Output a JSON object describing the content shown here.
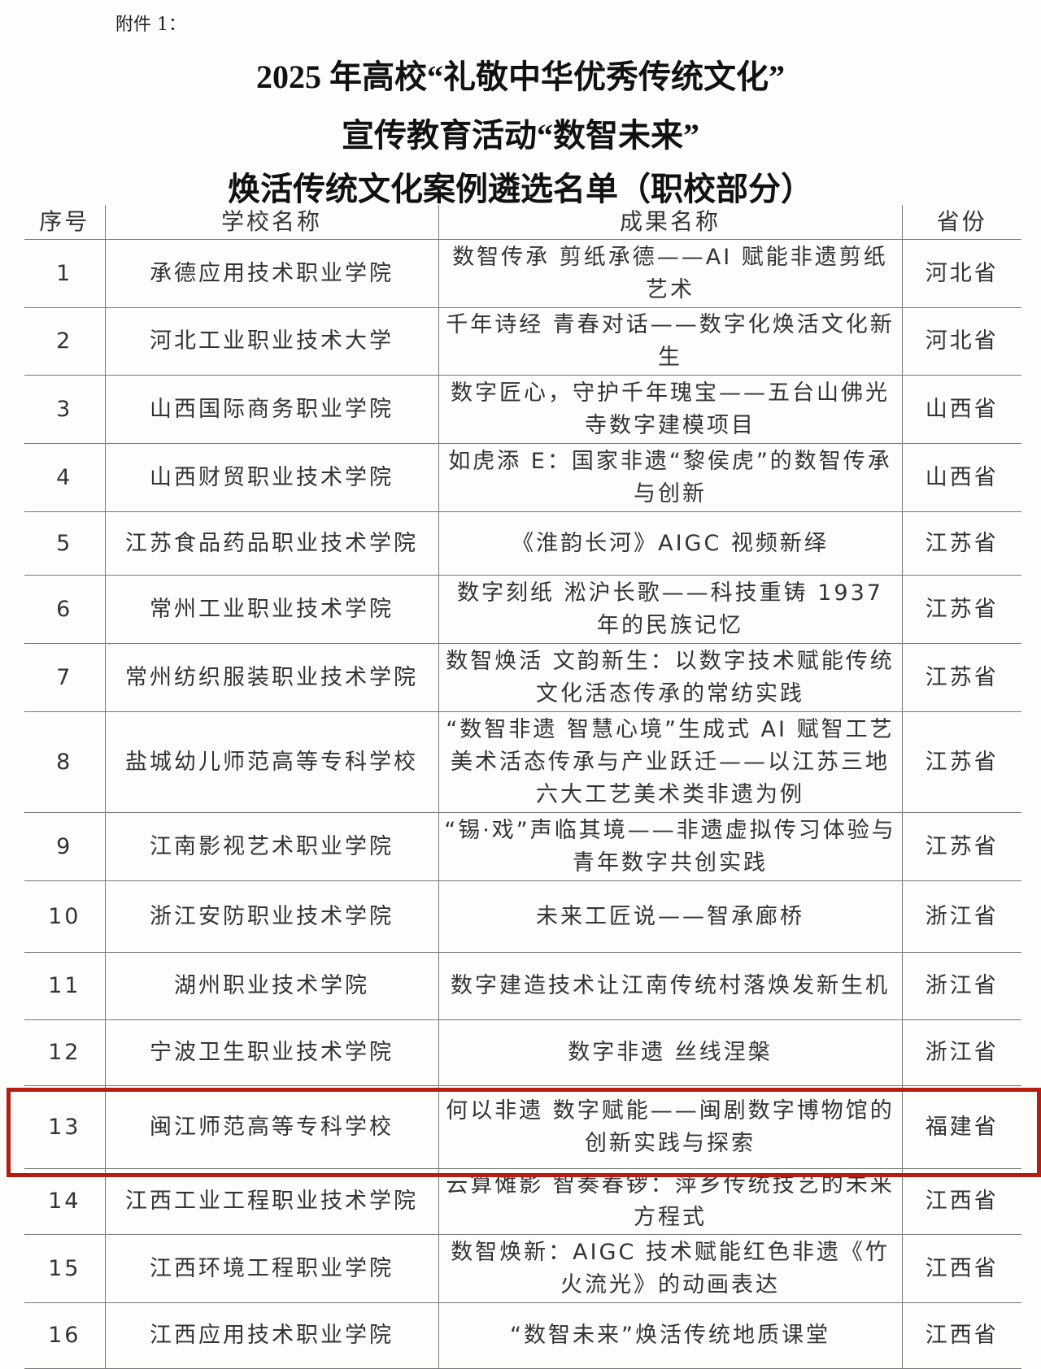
{
  "attachment_label": "附件 1：",
  "title_lines": [
    "2025 年高校“礼敬中华优秀传统文化”",
    "宣传教育活动“数智未来”",
    "焕活传统文化案例遴选名单（职校部分）"
  ],
  "columns": [
    "序号",
    "学校名称",
    "成果名称",
    "省份"
  ],
  "highlight_color": "#b71c10",
  "highlighted_row": 13,
  "rows": [
    {
      "no": "1",
      "school": "承德应用技术职业学院",
      "project": "数智传承 剪纸承德——AI 赋能非遗剪纸艺术",
      "province": "河北省"
    },
    {
      "no": "2",
      "school": "河北工业职业技术大学",
      "project": "千年诗经 青春对话——数字化焕活文化新生",
      "province": "河北省"
    },
    {
      "no": "3",
      "school": "山西国际商务职业学院",
      "project": "数字匠心，守护千年瑰宝——五台山佛光寺数字建模项目",
      "province": "山西省"
    },
    {
      "no": "4",
      "school": "山西财贸职业技术学院",
      "project": "如虎添 E：国家非遗“黎侯虎”的数智传承与创新",
      "province": "山西省"
    },
    {
      "no": "5",
      "school": "江苏食品药品职业技术学院",
      "project": "《淮韵长河》AIGC 视频新绎",
      "province": "江苏省"
    },
    {
      "no": "6",
      "school": "常州工业职业技术学院",
      "project": "数字刻纸 淞沪长歌——科技重铸 1937 年的民族记忆",
      "province": "江苏省"
    },
    {
      "no": "7",
      "school": "常州纺织服装职业技术学院",
      "project": "数智焕活 文韵新生：以数字技术赋能传统文化活态传承的常纺实践",
      "province": "江苏省"
    },
    {
      "no": "8",
      "school": "盐城幼儿师范高等专科学校",
      "project": "“数智非遗 智慧心境”生成式 AI 赋智工艺美术活态传承与产业跃迁——以江苏三地六大工艺美术类非遗为例",
      "province": "江苏省"
    },
    {
      "no": "9",
      "school": "江南影视艺术职业学院",
      "project": "“锡·戏”声临其境——非遗虚拟传习体验与青年数字共创实践",
      "province": "江苏省"
    },
    {
      "no": "10",
      "school": "浙江安防职业技术学院",
      "project": "未来工匠说——智承廊桥",
      "province": "浙江省"
    },
    {
      "no": "11",
      "school": "湖州职业技术学院",
      "project": "数字建造技术让江南传统村落焕发新生机",
      "province": "浙江省"
    },
    {
      "no": "12",
      "school": "宁波卫生职业技术学院",
      "project": "数字非遗 丝线涅槃",
      "province": "浙江省"
    },
    {
      "no": "13",
      "school": "闽江师范高等专科学校",
      "project": "何以非遗 数字赋能——闽剧数字博物馆的创新实践与探索",
      "province": "福建省"
    },
    {
      "no": "14",
      "school": "江西工业工程职业技术学院",
      "project": "云算傩影 智奏春锣：萍乡传统技艺的未来方程式",
      "province": "江西省"
    },
    {
      "no": "15",
      "school": "江西环境工程职业学院",
      "project": "数智焕新：AIGC 技术赋能红色非遗《竹火流光》的动画表达",
      "province": "江西省"
    },
    {
      "no": "16",
      "school": "江西应用技术职业学院",
      "project": "“数智未来”焕活传统地质课堂",
      "province": "江西省"
    }
  ]
}
